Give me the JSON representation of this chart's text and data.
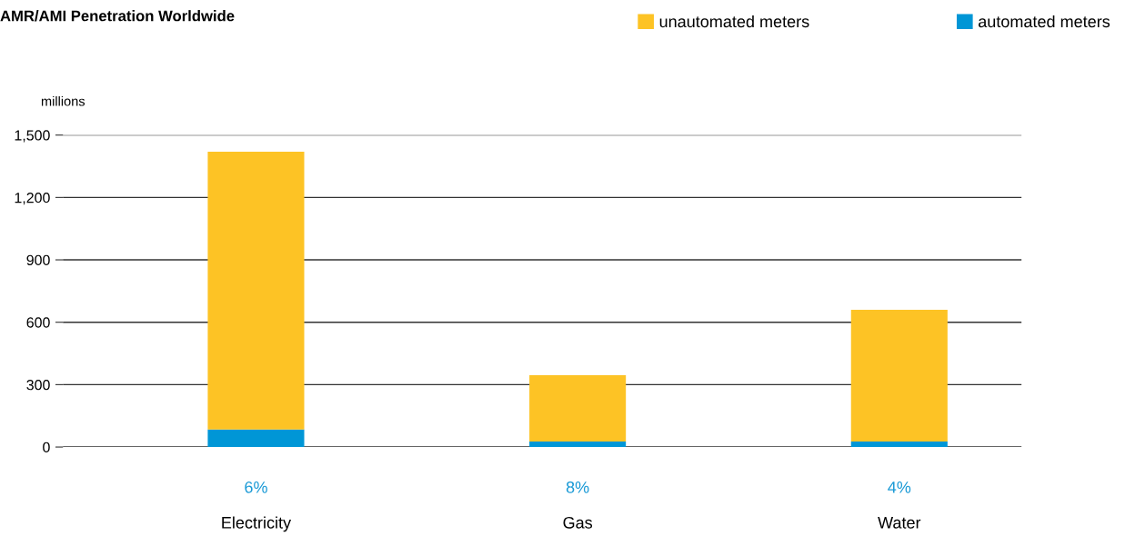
{
  "chart_data": {
    "type": "bar",
    "title": "AMR/AMI Penetration Worldwide",
    "ylabel": "millions",
    "categories": [
      "Electricity",
      "Gas",
      "Water"
    ],
    "stacked": true,
    "series": [
      {
        "name": "automated meters",
        "color": "#0096d6",
        "values": [
          84,
          26,
          26
        ]
      },
      {
        "name": "unautomated meters",
        "color": "#fdc325",
        "values": [
          1336,
          319,
          634
        ]
      }
    ],
    "ylim": [
      0,
      1500
    ],
    "yticks": [
      0,
      300,
      600,
      900,
      {
        "value": 1200,
        "label": "1,200"
      },
      {
        "value": 1500,
        "label": "1,500"
      }
    ],
    "grid": "y",
    "legend": "top right",
    "annotations": [
      "6%",
      "8%",
      "4%"
    ]
  }
}
